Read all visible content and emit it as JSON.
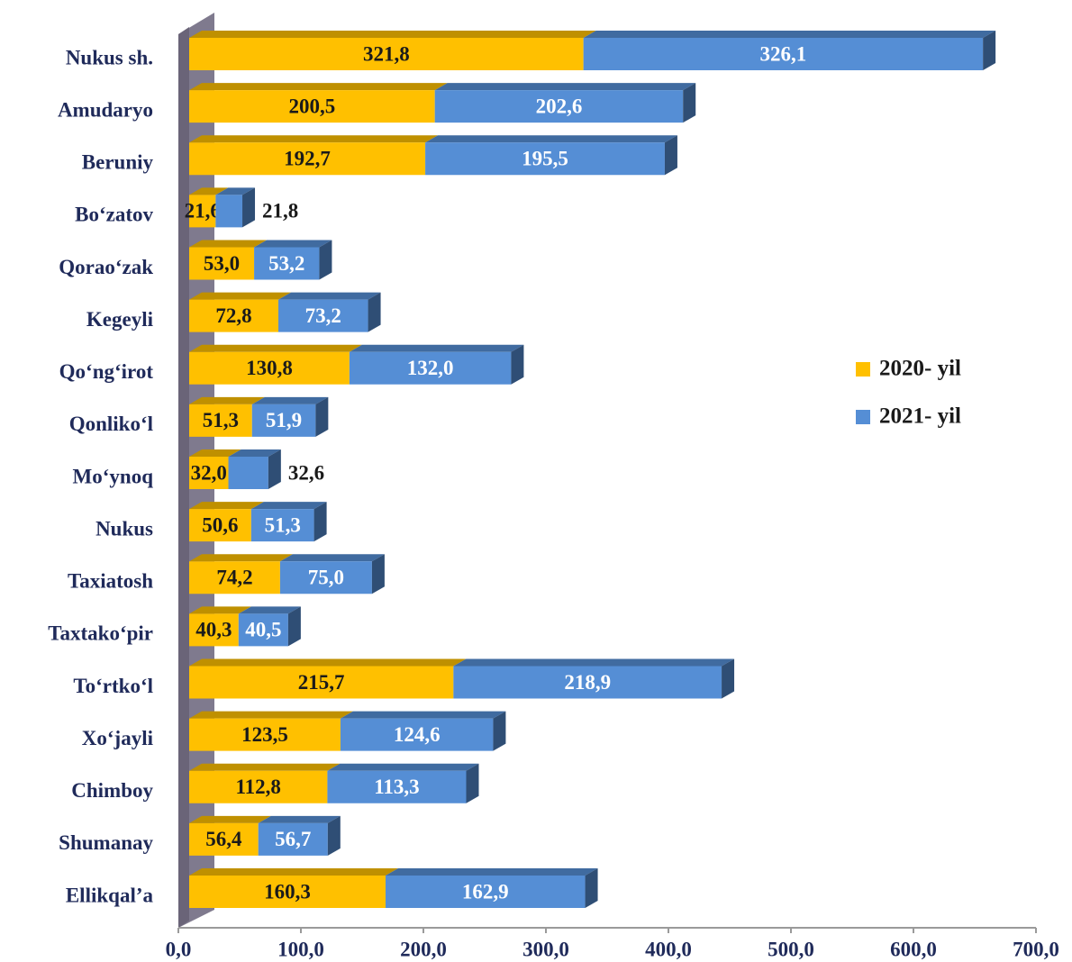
{
  "chart_data": {
    "type": "bar",
    "orientation": "horizontal",
    "stacked": true,
    "categories": [
      "Nukus sh.",
      "Amudaryo",
      "Beruniy",
      "Bo‘zatov",
      "Qorao‘zak",
      "Kegeyli",
      "Qo‘ng‘irot",
      "Qonliko‘l",
      "Mo‘ynoq",
      "Nukus",
      "Taxiatosh",
      "Taxtako‘pir",
      "To‘rtko‘l",
      "Xo‘jayli",
      "Chimboy",
      "Shumanay",
      "Ellikqal’a"
    ],
    "series": [
      {
        "name": "2020- yil",
        "color": "#ffc000",
        "values": [
          321.8,
          200.5,
          192.7,
          21.6,
          53.0,
          72.8,
          130.8,
          51.3,
          32.0,
          50.6,
          74.2,
          40.3,
          215.7,
          123.5,
          112.8,
          56.4,
          160.3
        ],
        "value_labels": [
          "321,8",
          "200,5",
          "192,7",
          "21,6",
          "53,0",
          "72,8",
          "130,8",
          "51,3",
          "32,0",
          "50,6",
          "74,2",
          "40,3",
          "215,7",
          "123,5",
          "112,8",
          "56,4",
          "160,3"
        ]
      },
      {
        "name": "2021- yil",
        "color": "#558ed5",
        "values": [
          326.1,
          202.6,
          195.5,
          21.8,
          53.2,
          73.2,
          132.0,
          51.9,
          32.6,
          51.3,
          75.0,
          40.5,
          218.9,
          124.6,
          113.3,
          56.7,
          162.9
        ],
        "value_labels": [
          "326,1",
          "202,6",
          "195,5",
          "21,8",
          "53,2",
          "73,2",
          "132,0",
          "51,9",
          "32,6",
          "51,3",
          "75,0",
          "40,5",
          "218,9",
          "124,6",
          "113,3",
          "56,7",
          "162,9"
        ]
      }
    ],
    "xlim": [
      0,
      700
    ],
    "xticks": [
      {
        "value": 0,
        "label": "0,0"
      },
      {
        "value": 100,
        "label": "100,0"
      },
      {
        "value": 200,
        "label": "200,0"
      },
      {
        "value": 300,
        "label": "300,0"
      },
      {
        "value": 400,
        "label": "400,0"
      },
      {
        "value": 500,
        "label": "500,0"
      },
      {
        "value": 600,
        "label": "600,0"
      },
      {
        "value": 700,
        "label": "700,0"
      }
    ],
    "legend": "right"
  }
}
